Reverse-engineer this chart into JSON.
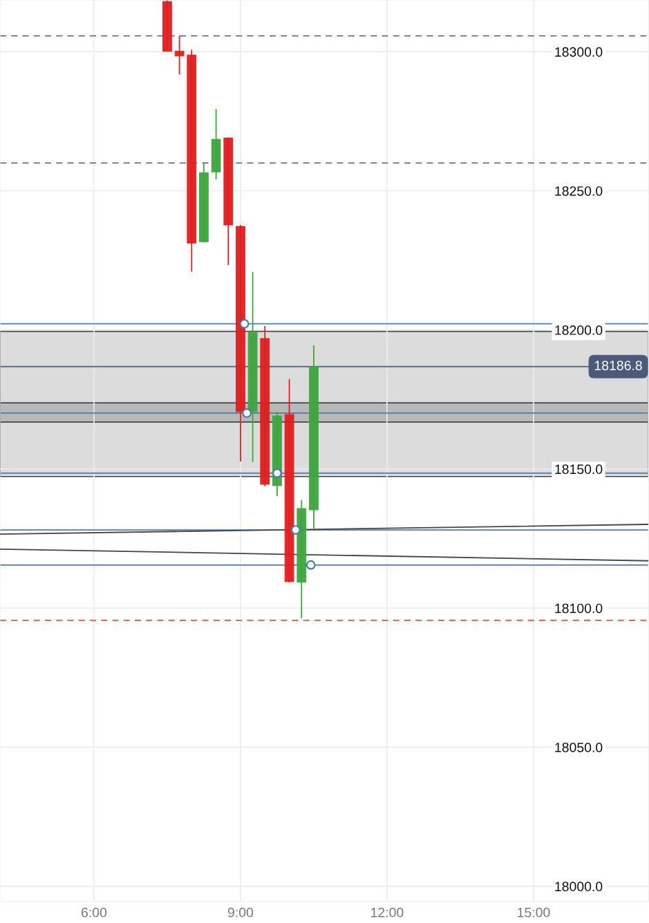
{
  "chart_data": {
    "type": "candlestick",
    "x": [
      7.5,
      7.75,
      8.0,
      8.25,
      8.5,
      8.75,
      9.0,
      9.25,
      9.5,
      9.75,
      10.0,
      10.25,
      10.5
    ],
    "ohlc": [
      [
        18318.0,
        18318.4,
        18300.2,
        18300.2
      ],
      [
        18300.2,
        18305.7,
        18291.8,
        18298.5
      ],
      [
        18298.8,
        18300.7,
        18221.0,
        18231.2
      ],
      [
        18231.7,
        18260.3,
        18231.5,
        18256.5
      ],
      [
        18256.8,
        18279.4,
        18254.1,
        18268.5
      ],
      [
        18269.0,
        18269.2,
        18223.3,
        18237.7
      ],
      [
        18237.2,
        18237.7,
        18152.7,
        18170.6
      ],
      [
        18170.6,
        18220.8,
        18152.5,
        18199.1
      ],
      [
        18196.9,
        18201.4,
        18143.8,
        18144.5
      ],
      [
        18144.0,
        18170.6,
        18140.3,
        18169.1
      ],
      [
        18169.6,
        18182.3,
        18109.3,
        18109.5
      ],
      [
        18109.3,
        18138.8,
        18096.4,
        18135.8
      ],
      [
        18135.3,
        18194.5,
        18128.6,
        18186.8
      ]
    ],
    "series": [
      {
        "type": "line",
        "color": "#444444",
        "x": [
          4.076,
          17.35
        ],
        "values": [
          18126.6,
          18130.1
        ]
      },
      {
        "type": "line",
        "color": "#444444",
        "x": [
          4.076,
          17.35
        ],
        "values": [
          18121.2,
          18117.0
        ]
      },
      {
        "type": "scatter",
        "color": "#4a7bb0",
        "x": [
          9.08,
          9.13,
          9.75,
          10.13,
          10.44
        ],
        "values": [
          18202.2,
          18170.1,
          18148.5,
          18128.1,
          18115.5
        ]
      }
    ],
    "ref_lines": [
      {
        "axis": "y",
        "value": 18305.7,
        "color": "#7a6a9e",
        "line_style": "dashed"
      },
      {
        "axis": "y",
        "value": 18260.0,
        "color": "#7a6a9e",
        "line_style": "dashed"
      },
      {
        "axis": "y",
        "value": 18095.6,
        "color": "#e8532a",
        "line_style": "dashed"
      },
      {
        "axis": "y",
        "value": 18202.2,
        "color": "#4a7bb0",
        "line_style": "solid"
      },
      {
        "axis": "y",
        "value": 18170.1,
        "color": "#4a7bb0",
        "line_style": "solid"
      },
      {
        "axis": "y",
        "value": 18148.5,
        "color": "#4a7bb0",
        "line_style": "solid"
      },
      {
        "axis": "y",
        "value": 18128.1,
        "color": "#4a7bb0",
        "line_style": "solid"
      },
      {
        "axis": "y",
        "value": 18115.5,
        "color": "#4a7bb0",
        "line_style": "solid"
      },
      {
        "axis": "y",
        "value": 18186.8,
        "label": "18186.8",
        "color": "#4a5a78",
        "line_style": "solid"
      }
    ],
    "bands": [
      {
        "axis": "y",
        "from": 18147.3,
        "to": 18199.5,
        "color": "#dcdcdc"
      },
      {
        "axis": "y",
        "from": 18166.9,
        "to": 18173.8,
        "color": "#b8b8b8"
      }
    ],
    "xlim": [
      4.076,
      17.35
    ],
    "ylim": [
      17994.5,
      18318.6
    ],
    "xticks": [
      {
        "value": 6,
        "label": "6:00"
      },
      {
        "value": 9,
        "label": "9:00"
      },
      {
        "value": 12,
        "label": "12:00"
      },
      {
        "value": 15,
        "label": "15:00"
      }
    ],
    "yticks": [
      {
        "value": 18000,
        "label": "18000.0"
      },
      {
        "value": 18050,
        "label": "18050.0"
      },
      {
        "value": 18100,
        "label": "18100.0"
      },
      {
        "value": 18150,
        "label": "18150.0"
      },
      {
        "value": 18200,
        "label": "18200.0"
      },
      {
        "value": 18250,
        "label": "18250.0"
      },
      {
        "value": 18300,
        "label": "18300.0"
      }
    ],
    "grid": true
  }
}
